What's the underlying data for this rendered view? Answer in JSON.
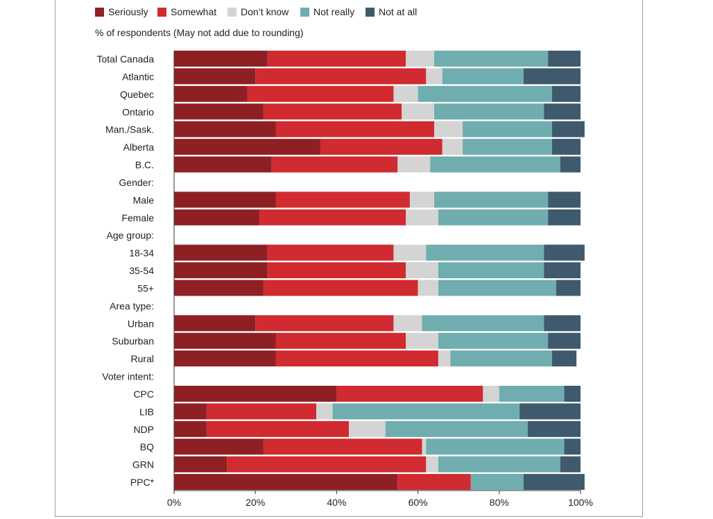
{
  "chart_data": {
    "type": "bar",
    "orientation": "horizontal",
    "stacked": true,
    "subtitle": "% of respondents (May not add due to rounding)",
    "legend_position": "top-left",
    "colors": {
      "Seriously": "#8e2024",
      "Somewhat": "#cf2b30",
      "Don’t know": "#d4d4d4",
      "Not really": "#6fadae",
      "Not at all": "#3e5a6c"
    },
    "series": [
      {
        "name": "Seriously"
      },
      {
        "name": "Somewhat"
      },
      {
        "name": "Don’t know"
      },
      {
        "name": "Not really"
      },
      {
        "name": "Not at all"
      }
    ],
    "categories": [
      {
        "label": "Total Canada",
        "values": [
          23,
          34,
          7,
          28,
          8
        ]
      },
      {
        "label": "Atlantic",
        "values": [
          20,
          42,
          4,
          20,
          14
        ]
      },
      {
        "label": "Quebec",
        "values": [
          18,
          36,
          6,
          33,
          7
        ]
      },
      {
        "label": "Ontario",
        "values": [
          22,
          34,
          8,
          27,
          9
        ]
      },
      {
        "label": "Man./Sask.",
        "values": [
          25,
          39,
          7,
          22,
          8
        ]
      },
      {
        "label": "Alberta",
        "values": [
          36,
          30,
          5,
          22,
          7
        ]
      },
      {
        "label": "B.C.",
        "values": [
          24,
          31,
          8,
          32,
          5
        ]
      },
      {
        "label": "Gender:",
        "header": true
      },
      {
        "label": "Male",
        "values": [
          25,
          33,
          6,
          28,
          8
        ]
      },
      {
        "label": "Female",
        "values": [
          21,
          36,
          8,
          27,
          8
        ]
      },
      {
        "label": "Age group:",
        "header": true
      },
      {
        "label": "18-34",
        "values": [
          23,
          31,
          8,
          29,
          10
        ]
      },
      {
        "label": "35-54",
        "values": [
          23,
          34,
          8,
          26,
          9
        ]
      },
      {
        "label": "55+",
        "values": [
          22,
          38,
          5,
          29,
          6
        ]
      },
      {
        "label": "Area type:",
        "header": true
      },
      {
        "label": "Urban",
        "values": [
          20,
          34,
          7,
          30,
          9
        ]
      },
      {
        "label": "Suburban",
        "values": [
          25,
          32,
          8,
          27,
          8
        ]
      },
      {
        "label": "Rural",
        "values": [
          25,
          40,
          3,
          25,
          6
        ]
      },
      {
        "label": "Voter intent:",
        "header": true
      },
      {
        "label": "CPC",
        "values": [
          40,
          36,
          4,
          16,
          4
        ]
      },
      {
        "label": "LIB",
        "values": [
          8,
          27,
          4,
          46,
          15
        ]
      },
      {
        "label": "NDP",
        "values": [
          8,
          35,
          9,
          35,
          13
        ]
      },
      {
        "label": "BQ",
        "values": [
          22,
          39,
          1,
          34,
          4
        ]
      },
      {
        "label": "GRN",
        "values": [
          13,
          49,
          3,
          30,
          5
        ]
      },
      {
        "label": "PPC*",
        "values": [
          55,
          18,
          0,
          13,
          15
        ]
      }
    ],
    "xlim": [
      0,
      100
    ],
    "xticks": [
      0,
      20,
      40,
      60,
      80,
      100
    ],
    "xtick_labels": [
      "0%",
      "20%",
      "40%",
      "60%",
      "80%",
      "100%"
    ],
    "grid": false
  }
}
